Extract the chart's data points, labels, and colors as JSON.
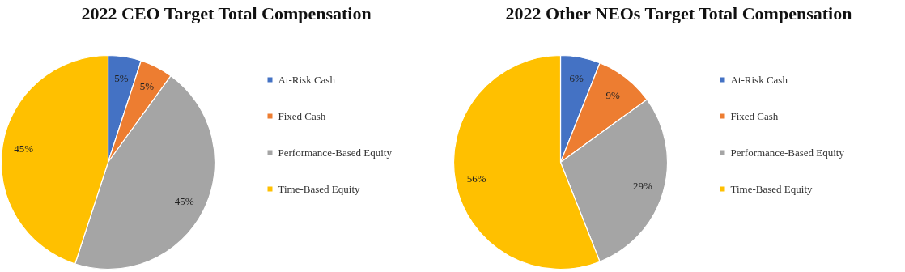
{
  "chart_data": [
    {
      "type": "pie",
      "title": "2022 CEO Target Total Compensation",
      "categories": [
        "At-Risk Cash",
        "Fixed Cash",
        "Performance-Based Equity",
        "Time-Based Equity"
      ],
      "values": [
        5,
        5,
        45,
        45
      ],
      "colors": [
        "#4472c4",
        "#ed7d31",
        "#a5a5a5",
        "#ffc000"
      ],
      "value_labels": [
        "5%",
        "5%",
        "45%",
        "45%"
      ],
      "legend": "right"
    },
    {
      "type": "pie",
      "title": "2022 Other NEOs Target Total Compensation",
      "categories": [
        "At-Risk Cash",
        "Fixed Cash",
        "Performance-Based Equity",
        "Time-Based Equity"
      ],
      "values": [
        6,
        9,
        29,
        56
      ],
      "colors": [
        "#4472c4",
        "#ed7d31",
        "#a5a5a5",
        "#ffc000"
      ],
      "value_labels": [
        "6%",
        "9%",
        "29%",
        "56%"
      ],
      "legend": "right"
    }
  ]
}
